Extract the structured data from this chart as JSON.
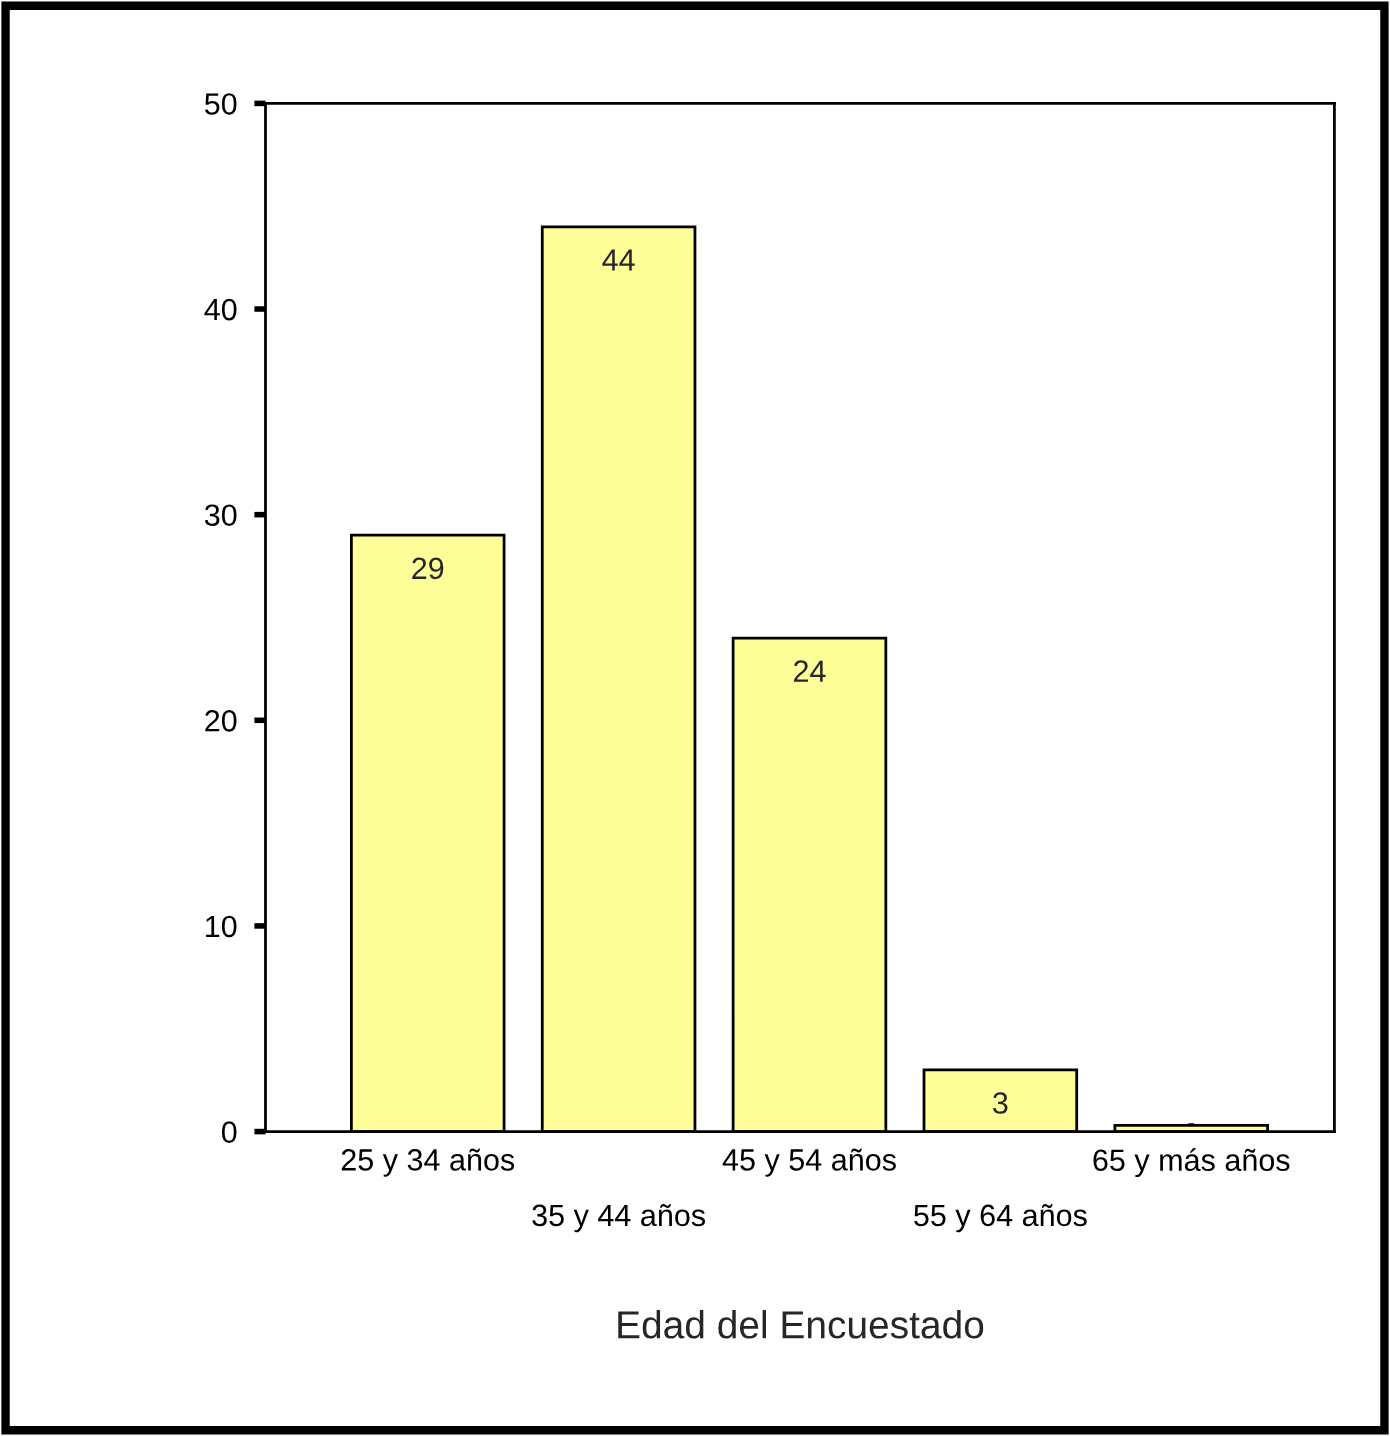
{
  "chart_data": {
    "type": "bar",
    "xlabel": "Edad del Encuestado",
    "categories": [
      "25 y 34 años",
      "35 y 44 años",
      "45 y 54 años",
      "55 y 64 años",
      "65 y más años"
    ],
    "values": [
      29,
      44,
      24,
      3,
      0.3
    ],
    "value_labels": [
      "29",
      "44",
      "24",
      "3",
      null
    ],
    "color": "#ffff99",
    "ylim": [
      0,
      50
    ],
    "yticks": [
      0,
      10,
      20,
      30,
      40,
      50
    ],
    "grid": false,
    "legend": false
  }
}
